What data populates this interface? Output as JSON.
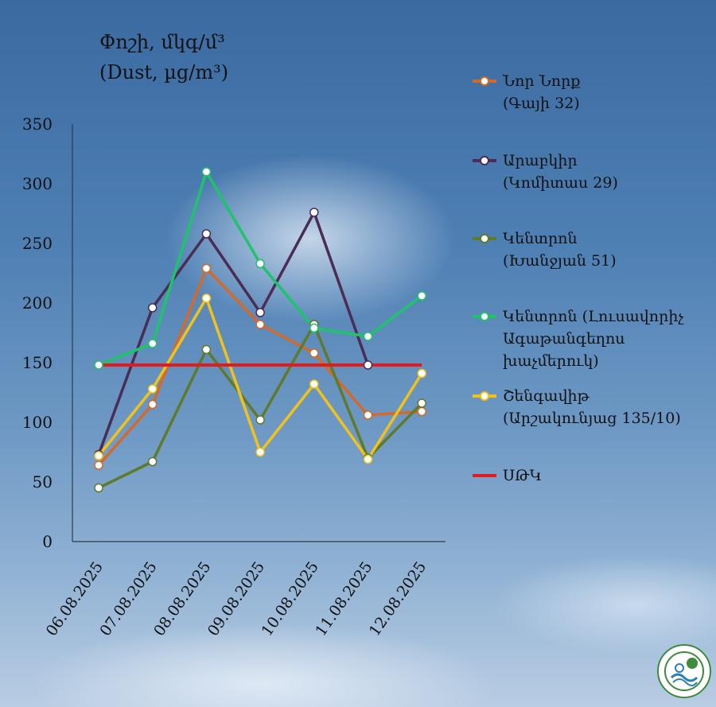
{
  "chart_data": {
    "type": "line",
    "title": "Փոշի, մկգ/մ³",
    "subtitle": "(Dust, µg/m³)",
    "categories": [
      "06.08.2025",
      "07.08.2025",
      "08.08.2025",
      "09.08.2025",
      "10.08.2025",
      "11.08.2025",
      "12.08.2025"
    ],
    "ylim": [
      0,
      350
    ],
    "yticks": [
      0,
      50,
      100,
      150,
      200,
      250,
      300,
      350
    ],
    "series": [
      {
        "name": "Նոր Նորք",
        "name2": "(Գայի 32)",
        "color": "#d46a2a",
        "values": [
          64,
          115,
          229,
          182,
          158,
          106,
          109
        ]
      },
      {
        "name": "Արաբկիր",
        "name2": "(Կոմիտաս 29)",
        "color": "#4a2d55",
        "values": [
          73,
          196,
          258,
          192,
          276,
          148,
          null
        ]
      },
      {
        "name": "Կենտրոն",
        "name2": "(Խանջյան 51)",
        "color": "#5e7a2a",
        "values": [
          45,
          67,
          161,
          102,
          182,
          70,
          116
        ]
      },
      {
        "name": "Կենտրոն (Լուսավորիչ",
        "name2": "Ագաթանգեղոս",
        "name3": "խաչմերուկ)",
        "color": "#1fc46a",
        "values": [
          148,
          166,
          310,
          233,
          179,
          172,
          206
        ]
      },
      {
        "name": "Շենգավիթ",
        "name2": "(Արշակունյաց 135/10)",
        "color": "#f2c21a",
        "values": [
          72,
          128,
          204,
          75,
          132,
          69,
          141
        ]
      }
    ],
    "threshold": {
      "name": "ՍԹԿ",
      "color": "#e21c1c",
      "value": 148
    }
  }
}
